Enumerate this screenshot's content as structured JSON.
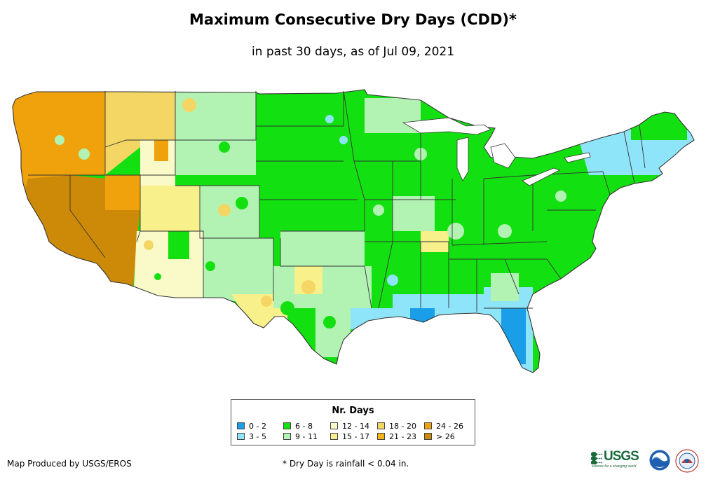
{
  "title": "Maximum Consecutive Dry Days (CDD)*",
  "subtitle": "in past 30 days, as of Jul 09, 2021",
  "legend": {
    "title": "Nr. Days",
    "items": [
      {
        "label": "0 - 2",
        "color": "#1a9ee8"
      },
      {
        "label": "3 - 5",
        "color": "#8ee4f8"
      },
      {
        "label": "6 - 8",
        "color": "#13e010"
      },
      {
        "label": "9 - 11",
        "color": "#b2f3b4"
      },
      {
        "label": "12 - 14",
        "color": "#fafac8"
      },
      {
        "label": "15 - 17",
        "color": "#f8f08a"
      },
      {
        "label": "18 - 20",
        "color": "#f4d664"
      },
      {
        "label": "21 - 23",
        "color": "#f5b516"
      },
      {
        "label": "24 - 26",
        "color": "#f0a20c"
      },
      {
        "label": "> 26",
        "color": "#cc8a08"
      }
    ]
  },
  "footer": {
    "credit": "Map Produced by USGS/EROS",
    "footnote": "* Dry Day is rainfall < 0.04 in."
  },
  "logos": {
    "usgs_text": "USGS",
    "usgs_tagline": "science for a changing world"
  },
  "colors": {
    "state_border": "#333333",
    "water": "#ffffff"
  }
}
